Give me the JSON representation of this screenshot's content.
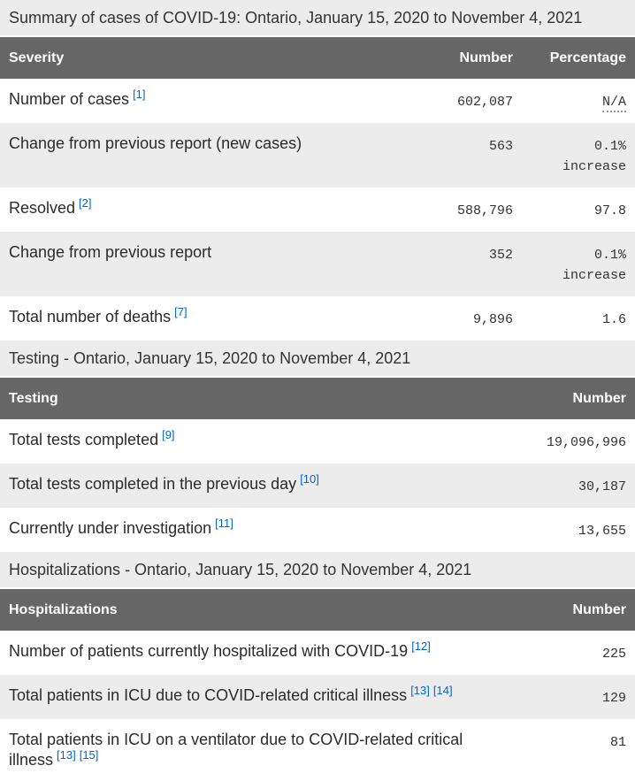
{
  "tables": [
    {
      "caption": "Summary of cases of COVID-19: Ontario, January 15, 2020 to November 4, 2021",
      "columns": [
        "Severity",
        "Number",
        "Percentage"
      ],
      "rows": [
        {
          "label": "Number of cases",
          "refs": [
            "[1]"
          ],
          "cells": [
            "602,087",
            "N/A"
          ]
        },
        {
          "label": "Change from previous report (new cases)",
          "refs": [],
          "cells": [
            "563",
            "0.1% increase"
          ]
        },
        {
          "label": "Resolved",
          "refs": [
            "[2]"
          ],
          "cells": [
            "588,796",
            "97.8"
          ]
        },
        {
          "label": "Change from previous report",
          "refs": [],
          "cells": [
            "352",
            "0.1% increase"
          ]
        },
        {
          "label": "Total number of deaths",
          "refs": [
            "[7]"
          ],
          "cells": [
            "9,896",
            "1.6"
          ]
        }
      ]
    },
    {
      "caption": "Testing - Ontario, January 15, 2020 to November 4, 2021",
      "columns": [
        "Testing",
        "Number"
      ],
      "rows": [
        {
          "label": "Total tests completed",
          "refs": [
            "[9]"
          ],
          "cells": [
            "19,096,996"
          ]
        },
        {
          "label": "Total tests completed in the previous day",
          "refs": [
            "[10]"
          ],
          "cells": [
            "30,187"
          ]
        },
        {
          "label": "Currently under investigation",
          "refs": [
            "[11]"
          ],
          "cells": [
            "13,655"
          ]
        }
      ]
    },
    {
      "caption": "Hospitalizations - Ontario, January 15, 2020 to November 4, 2021",
      "columns": [
        "Hospitalizations",
        "Number"
      ],
      "rows": [
        {
          "label": "Number of patients currently hospitalized with COVID-19",
          "refs": [
            "[12]"
          ],
          "cells": [
            "225"
          ]
        },
        {
          "label": "Total patients in ICU due to COVID-related critical illness",
          "refs": [
            "[13]",
            "[14]"
          ],
          "cells": [
            "129"
          ]
        },
        {
          "label": "Total patients in ICU on a ventilator due to COVID-related critical illness",
          "refs": [
            "[13]",
            "[15]"
          ],
          "cells": [
            "81"
          ]
        }
      ]
    }
  ],
  "colors": {
    "header_bg": "#666666",
    "header_text": "#ffffff",
    "stripe_bg": "#ececec",
    "caption_bg": "#ececec",
    "link": "#0066cc",
    "body_text": "#333333"
  }
}
